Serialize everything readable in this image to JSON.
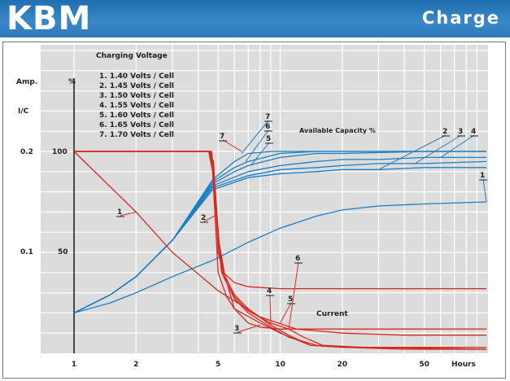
{
  "header": {
    "logo": "KBM",
    "section_title": "Charge"
  },
  "colors": {
    "header_blue": "#2c79bb",
    "voltage_curves": "#1a7fc4",
    "current_curves": "#d42a1f",
    "plot_background": "#dcdcdc",
    "grid": "#ffffff"
  },
  "chart_data": {
    "type": "line",
    "xscale": "log",
    "xlabel": "Hours",
    "xticks": [
      "1",
      "2",
      "5",
      "10",
      "20",
      "50"
    ],
    "xlim": [
      1,
      100
    ],
    "y_left_title": "Amp.",
    "y_left_subtitle": "I/C",
    "y_left_ticks": [
      "0.2",
      "0.1"
    ],
    "y_right_title": "%",
    "y_right_ticks": [
      "100",
      "50"
    ],
    "ylim": [
      0,
      100
    ],
    "grid": true,
    "legend_title": "Charging Voltage",
    "legend": [
      "1.  1.40  Volts / Cell",
      "2.  1.45  Volts / Cell",
      "3.  1.50  Volts / Cell",
      "4.  1.55  Volts / Cell",
      "5.  1.60  Volts / Cell",
      "6.  1.65  Volts / Cell",
      "7.  1.70  Volts / Cell"
    ],
    "capacity_title": "Available Capacity %",
    "current_title": "Current",
    "capacity_series": [
      {
        "name": "1",
        "x": [
          1,
          1.5,
          2,
          3,
          4.7,
          7,
          10,
          15,
          20,
          30,
          50,
          100
        ],
        "y": [
          20,
          25,
          30,
          38,
          46,
          55,
          62,
          68,
          71,
          73,
          74,
          75
        ]
      },
      {
        "name": "2",
        "x": [
          1,
          1.5,
          2,
          3,
          4.7,
          7,
          10,
          15,
          20,
          30,
          50,
          100
        ],
        "y": [
          20,
          29,
          38,
          56,
          81,
          87,
          89,
          90,
          91,
          91,
          92,
          92
        ]
      },
      {
        "name": "3",
        "x": [
          1,
          1.5,
          2,
          3,
          4.7,
          7,
          10,
          15,
          20,
          30,
          50,
          100
        ],
        "y": [
          20,
          29,
          38,
          56,
          82,
          88,
          91,
          92,
          93,
          94,
          94,
          95
        ]
      },
      {
        "name": "4",
        "x": [
          1,
          1.5,
          2,
          3,
          4.7,
          7,
          10,
          15,
          20,
          30,
          50,
          100
        ],
        "y": [
          20,
          29,
          38,
          56,
          83,
          90,
          93,
          95,
          96,
          96,
          97,
          97
        ]
      },
      {
        "name": "5",
        "x": [
          1,
          1.5,
          2,
          3,
          4.7,
          6,
          7,
          10,
          15,
          20,
          50,
          100
        ],
        "y": [
          20,
          29,
          38,
          56,
          84,
          90,
          93,
          97,
          99,
          99,
          100,
          100
        ]
      },
      {
        "name": "6",
        "x": [
          1,
          1.5,
          2,
          3,
          4.7,
          6,
          7,
          10,
          15,
          20,
          50,
          100
        ],
        "y": [
          20,
          29,
          38,
          56,
          85,
          92,
          95,
          99,
          100,
          100,
          100,
          100
        ]
      },
      {
        "name": "7",
        "x": [
          1,
          1.5,
          2,
          3,
          4.7,
          6,
          7,
          9,
          12,
          20,
          50,
          100
        ],
        "y": [
          20,
          29,
          38,
          56,
          86,
          95,
          99,
          100,
          100,
          100,
          100,
          100
        ]
      }
    ],
    "current_series": [
      {
        "name": "1",
        "x": [
          1,
          2,
          3,
          5,
          8,
          12,
          20,
          40,
          100
        ],
        "y": [
          100,
          70,
          50,
          31,
          18,
          12,
          10,
          9,
          9
        ]
      },
      {
        "name": "2",
        "x": [
          1,
          4.5,
          4.75,
          4.9,
          5,
          5.3,
          6,
          7,
          10,
          20,
          100
        ],
        "y": [
          100,
          100,
          95,
          70,
          50,
          40,
          35,
          33,
          32,
          32,
          32
        ]
      },
      {
        "name": "3",
        "x": [
          1,
          4.5,
          4.7,
          4.85,
          5,
          5.5,
          6,
          8,
          10,
          14,
          20,
          100
        ],
        "y": [
          100,
          100,
          90,
          65,
          40,
          28,
          22,
          15,
          10,
          4,
          3,
          3
        ]
      },
      {
        "name": "4",
        "x": [
          1,
          4.55,
          4.75,
          4.95,
          5.2,
          6,
          7,
          9,
          11,
          15,
          25,
          100
        ],
        "y": [
          100,
          100,
          88,
          60,
          40,
          27,
          20,
          13,
          8,
          4,
          3,
          2
        ]
      },
      {
        "name": "5",
        "x": [
          1,
          4.6,
          4.8,
          5,
          5.3,
          6,
          7,
          9,
          11,
          13,
          16,
          25,
          100
        ],
        "y": [
          100,
          100,
          85,
          55,
          38,
          28,
          21,
          15,
          12,
          8,
          4,
          3,
          2
        ]
      },
      {
        "name": "6",
        "x": [
          1,
          4.65,
          4.85,
          5.05,
          5.4,
          6,
          7,
          8,
          10,
          20,
          100
        ],
        "y": [
          100,
          100,
          80,
          55,
          38,
          22,
          15,
          13,
          12,
          12,
          12
        ]
      },
      {
        "name": "7",
        "x": [
          1,
          4.6,
          4.8,
          5,
          5.3,
          6,
          7,
          9,
          11,
          14,
          20,
          40,
          100
        ],
        "y": [
          100,
          100,
          84,
          57,
          40,
          29,
          22,
          14,
          9,
          4,
          3,
          2,
          2
        ]
      }
    ]
  }
}
